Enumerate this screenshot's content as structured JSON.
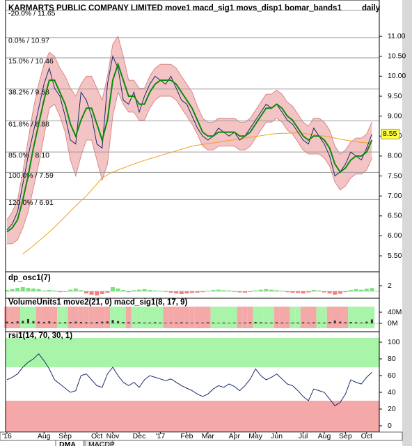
{
  "tabs": [
    "DMA",
    "MACDP"
  ],
  "chart_data": [
    {
      "type": "line",
      "title": "KARMARTS PUBLIC COMPANY LIMITED move1 macd_sig1 movs_disp1 bomar_bands1",
      "subtitle": "daily",
      "categories": [
        "'16",
        null,
        null,
        null,
        null,
        null,
        null,
        "Aug",
        null,
        null,
        null,
        "Sep",
        null,
        null,
        null,
        null,
        null,
        "Oct",
        null,
        null,
        "Nov",
        null,
        null,
        null,
        null,
        "Dec",
        null,
        null,
        null,
        "'17",
        null,
        null,
        null,
        null,
        "Feb",
        null,
        null,
        null,
        "Mar",
        null,
        null,
        null,
        null,
        "Apr",
        null,
        null,
        null,
        "May",
        null,
        null,
        null,
        "Jun",
        null,
        null,
        null,
        null,
        "Jul",
        null,
        null,
        null,
        "Aug",
        null,
        null,
        null,
        "Sep",
        null,
        null,
        null,
        "Oct",
        null
      ],
      "series": [
        {
          "color": "#1a2a6c",
          "values": [
            6.15,
            6.3,
            6.6,
            7.3,
            8.0,
            8.6,
            9.2,
            9.8,
            10.2,
            9.7,
            9.5,
            9.0,
            8.4,
            8.3,
            9.6,
            9.4,
            9.0,
            8.3,
            8.2,
            9.8,
            10.5,
            10.2,
            9.4,
            9.3,
            9.6,
            9.1,
            9.5,
            9.8,
            10.0,
            9.9,
            9.8,
            10.0,
            9.7,
            9.4,
            9.3,
            9.0,
            8.7,
            8.5,
            8.4,
            8.5,
            8.7,
            8.6,
            8.5,
            8.6,
            8.4,
            8.5,
            8.7,
            8.9,
            9.1,
            9.3,
            9.2,
            9.3,
            9.1,
            8.9,
            8.8,
            8.6,
            8.4,
            8.3,
            8.7,
            8.5,
            8.3,
            8.0,
            7.5,
            7.6,
            7.8,
            8.1,
            8.0,
            7.9,
            8.2,
            8.55
          ]
        },
        {
          "color": "#0a8a0a",
          "values": [
            6.1,
            6.2,
            6.4,
            6.9,
            7.5,
            8.2,
            8.8,
            9.4,
            9.9,
            9.9,
            9.6,
            9.3,
            8.8,
            8.5,
            8.9,
            9.2,
            9.2,
            8.8,
            8.4,
            8.9,
            9.9,
            10.3,
            9.9,
            9.5,
            9.5,
            9.3,
            9.3,
            9.6,
            9.8,
            9.9,
            9.9,
            9.9,
            9.8,
            9.6,
            9.4,
            9.2,
            8.9,
            8.6,
            8.5,
            8.5,
            8.6,
            8.6,
            8.6,
            8.6,
            8.5,
            8.5,
            8.6,
            8.8,
            9.0,
            9.2,
            9.2,
            9.3,
            9.2,
            9.0,
            8.9,
            8.7,
            8.5,
            8.4,
            8.5,
            8.5,
            8.4,
            8.2,
            7.8,
            7.6,
            7.7,
            7.9,
            8.0,
            8.0,
            8.1,
            8.4
          ]
        },
        {
          "color": "#f0a020",
          "values": [
            null,
            null,
            null,
            5.55,
            5.65,
            5.75,
            5.87,
            5.98,
            6.1,
            6.22,
            6.35,
            6.48,
            6.62,
            6.75,
            6.88,
            7.0,
            7.15,
            7.3,
            7.45,
            7.53,
            7.6,
            7.65,
            7.7,
            7.75,
            7.8,
            7.85,
            7.89,
            7.93,
            7.97,
            8.01,
            8.05,
            8.09,
            8.13,
            8.17,
            8.21,
            8.25,
            8.27,
            8.29,
            8.31,
            8.33,
            8.35,
            8.37,
            8.39,
            8.41,
            8.43,
            8.45,
            8.47,
            8.49,
            8.51,
            8.53,
            8.55,
            8.56,
            8.57,
            8.57,
            8.58,
            8.58,
            8.57,
            8.55,
            8.53,
            8.51,
            8.5,
            8.48,
            8.45,
            8.42,
            8.4,
            8.38,
            8.36,
            8.34,
            8.33,
            8.32
          ]
        }
      ],
      "band": {
        "color": "#f4c4c4",
        "line_color": "#d88888",
        "upper": [
          6.4,
          6.6,
          6.9,
          7.6,
          8.4,
          9.2,
          9.8,
          10.3,
          10.6,
          10.5,
          10.2,
          10.0,
          9.7,
          9.5,
          9.8,
          10.0,
          10.0,
          9.7,
          9.4,
          10.0,
          10.8,
          11.0,
          10.5,
          9.9,
          9.9,
          9.7,
          9.7,
          10.0,
          10.2,
          10.3,
          10.3,
          10.3,
          10.2,
          10.0,
          9.8,
          9.6,
          9.25,
          8.95,
          8.85,
          8.85,
          8.95,
          8.95,
          8.95,
          8.95,
          8.85,
          8.85,
          8.95,
          9.15,
          9.35,
          9.55,
          9.55,
          9.65,
          9.55,
          9.35,
          9.25,
          9.05,
          8.85,
          8.75,
          8.95,
          8.95,
          8.85,
          8.65,
          8.25,
          8.05,
          8.15,
          8.35,
          8.45,
          8.45,
          8.55,
          8.85
        ],
        "lower": [
          5.8,
          5.8,
          5.9,
          6.2,
          6.6,
          7.2,
          7.8,
          8.5,
          9.2,
          9.3,
          9.0,
          8.6,
          7.9,
          7.5,
          8.0,
          8.4,
          8.4,
          7.9,
          7.4,
          7.8,
          9.0,
          9.6,
          9.3,
          9.1,
          9.1,
          8.9,
          8.9,
          9.2,
          9.4,
          9.5,
          9.5,
          9.5,
          9.4,
          9.2,
          9.0,
          8.8,
          8.55,
          8.25,
          8.15,
          8.15,
          8.25,
          8.25,
          8.25,
          8.25,
          8.15,
          8.15,
          8.25,
          8.45,
          8.65,
          8.85,
          8.85,
          8.95,
          8.85,
          8.65,
          8.55,
          8.35,
          8.15,
          8.05,
          8.05,
          8.05,
          7.95,
          7.75,
          7.35,
          7.15,
          7.25,
          7.45,
          7.55,
          7.55,
          7.65,
          7.95
        ]
      },
      "levels": [
        {
          "label": "-20.0% / 11.65",
          "value": 11.65,
          "color": "#000000"
        },
        {
          "label": "0.0% / 10.97",
          "value": 10.97,
          "color": "#000000"
        },
        {
          "label": "15.0% / 10.46",
          "value": 10.46,
          "color": "#000000"
        },
        {
          "label": "38.2% / 9.68",
          "value": 9.68,
          "color": "#e00000"
        },
        {
          "label": "61.8% / 8.88",
          "value": 8.88,
          "color": "#e00000"
        },
        {
          "label": "85.0% / 8.10",
          "value": 8.1,
          "color": "#000000"
        },
        {
          "label": "100.0% / 7.59",
          "value": 7.59,
          "color": "#000000"
        },
        {
          "label": "120.0% / 6.91",
          "value": 6.91,
          "color": "#000000"
        }
      ],
      "level_line_color": "#9a9a9a",
      "last_price": 8.55,
      "last_price_color": "#ffff40",
      "ylim": [
        5.1,
        11.77
      ],
      "yticks": [
        {
          "value": 5.5,
          "label": "5.50"
        },
        {
          "value": 6,
          "label": "6.00"
        },
        {
          "value": 6.5,
          "label": "6.50"
        },
        {
          "value": 7,
          "label": "7.00"
        },
        {
          "value": 7.5,
          "label": "7.50"
        },
        {
          "value": 8,
          "label": "8.00"
        },
        {
          "value": 8.5,
          "label": "8.50"
        },
        {
          "value": 9,
          "label": "9.00"
        },
        {
          "value": 9.5,
          "label": "9.50"
        },
        {
          "value": 10,
          "label": "10.00"
        },
        {
          "value": 10.5,
          "label": "10.50"
        },
        {
          "value": 11,
          "label": "11.00"
        }
      ]
    },
    {
      "type": "bar",
      "title": "dp_osc1(7)",
      "values": [
        0.5,
        0.8,
        1.2,
        1.5,
        1.2,
        1.0,
        0.8,
        0.3,
        0.5,
        0.3,
        -0.3,
        -0.2,
        0.6,
        1.0,
        0.4,
        -0.8,
        -1.2,
        -1.5,
        -1.0,
        -0.5,
        1.5,
        1.0,
        0.5,
        -0.3,
        0.4,
        0.6,
        0.8,
        0.5,
        0.3,
        0.2,
        -0.2,
        -0.5,
        -0.8,
        -1.0,
        -0.8,
        -0.6,
        -0.5,
        -0.3,
        0.2,
        0.5,
        0.6,
        0.4,
        0.3,
        -0.2,
        -0.4,
        -0.5,
        -0.2,
        0.3,
        0.6,
        0.8,
        0.6,
        0.4,
        0.2,
        -0.3,
        -0.5,
        -0.6,
        -0.8,
        -0.4,
        0.5,
        0.3,
        -0.4,
        -0.8,
        -1.2,
        -0.9,
        -0.3,
        0.5,
        0.8,
        0.6,
        0.9,
        1.2
      ],
      "up_color": "#80e080",
      "down_color": "#f08080",
      "ylim": [
        -2.5,
        5.75
      ],
      "yticks": [
        2
      ]
    },
    {
      "type": "bar",
      "title": "VolumeUnits1 move2(21, 0) macd_sig1(8, 17, 9)",
      "values": [
        6000000.0,
        5000000.0,
        7000000.0,
        9000000.0,
        15000000.0,
        8000000.0,
        6000000.0,
        5000000.0,
        7000000.0,
        4000000.0,
        3000000.0,
        4000000.0,
        5000000.0,
        6000000.0,
        5000000.0,
        4000000.0,
        3000000.0,
        5000000.0,
        6000000.0,
        7000000.0,
        12000000.0,
        8000000.0,
        5000000.0,
        4000000.0,
        3000000.0,
        4000000.0,
        3000000.0,
        3000000.0,
        4000000.0,
        3000000.0,
        2000000.0,
        3000000.0,
        3000000.0,
        4000000.0,
        3000000.0,
        2000000.0,
        3000000.0,
        3000000.0,
        4000000.0,
        3000000.0,
        2000000.0,
        3000000.0,
        2000000.0,
        3000000.0,
        2000000.0,
        3000000.0,
        4000000.0,
        5000000.0,
        4000000.0,
        3000000.0,
        3000000.0,
        4000000.0,
        3000000.0,
        2000000.0,
        3000000.0,
        3000000.0,
        4000000.0,
        3000000.0,
        4000000.0,
        3000000.0,
        3000000.0,
        5000000.0,
        10000000.0,
        6000000.0,
        4000000.0,
        5000000.0,
        4000000.0,
        3000000.0,
        6000000.0,
        14000000.0
      ],
      "color": "#333333",
      "background_colors": [
        "#f4a8a8",
        "#f4a8a8",
        "#f4a8a8",
        "#a8f4a8",
        "#a8f4a8",
        "#a8f4a8",
        "#f4a8a8",
        "#f4a8a8",
        "#f4a8a8",
        "#f4a8a8",
        "#a8f4a8",
        "#a8f4a8",
        "#f4a8a8",
        "#f4a8a8",
        "#f4a8a8",
        "#f4a8a8",
        "#f4a8a8",
        "#f4a8a8",
        "#f4a8a8",
        "#f4a8a8",
        "#a8f4a8",
        "#a8f4a8",
        "#a8f4a8",
        "#f4a8a8",
        "#a8f4a8",
        "#a8f4a8",
        "#a8f4a8",
        "#a8f4a8",
        "#a8f4a8",
        "#a8f4a8",
        "#f4a8a8",
        "#f4a8a8",
        "#f4a8a8",
        "#f4a8a8",
        "#f4a8a8",
        "#f4a8a8",
        "#f4a8a8",
        "#f4a8a8",
        "#f4a8a8",
        "#a8f4a8",
        "#a8f4a8",
        "#a8f4a8",
        "#a8f4a8",
        "#a8f4a8",
        "#f4a8a8",
        "#f4a8a8",
        "#f4a8a8",
        "#a8f4a8",
        "#a8f4a8",
        "#a8f4a8",
        "#a8f4a8",
        "#f4a8a8",
        "#f4a8a8",
        "#f4a8a8",
        "#a8f4a8",
        "#a8f4a8",
        "#f4a8a8",
        "#f4a8a8",
        "#f4a8a8",
        "#a8f4a8",
        "#a8f4a8",
        "#f4a8a8",
        "#f4a8a8",
        "#f4a8a8",
        "#f4a8a8",
        "#a8f4a8",
        "#a8f4a8",
        "#a8f4a8",
        "#a8f4a8",
        "#a8f4a8"
      ],
      "ylim": [
        -20000000,
        60000000
      ],
      "yticks": [
        {
          "value": 40000000,
          "label": "40M"
        },
        {
          "value": 0,
          "label": "0M"
        }
      ]
    },
    {
      "type": "line",
      "title": "rsi1(14, 70, 30, 1)",
      "values": [
        55,
        58,
        62,
        70,
        76,
        80,
        86,
        78,
        68,
        55,
        50,
        45,
        40,
        42,
        60,
        62,
        55,
        48,
        46,
        62,
        70,
        60,
        52,
        48,
        52,
        46,
        55,
        60,
        58,
        56,
        54,
        56,
        52,
        48,
        45,
        42,
        38,
        35,
        38,
        44,
        48,
        46,
        50,
        47,
        42,
        48,
        56,
        68,
        60,
        55,
        58,
        62,
        56,
        50,
        48,
        42,
        35,
        30,
        44,
        42,
        40,
        32,
        24,
        28,
        38,
        55,
        52,
        50,
        58,
        64
      ],
      "color": "#1a2a6c",
      "overbought": 70,
      "oversold": 30,
      "overbought_color": "#a8f4a8",
      "oversold_color": "#f4a8a8",
      "ylim": [
        -7.5,
        105
      ],
      "yticks": [
        0,
        20,
        40,
        60,
        80,
        100
      ]
    }
  ]
}
